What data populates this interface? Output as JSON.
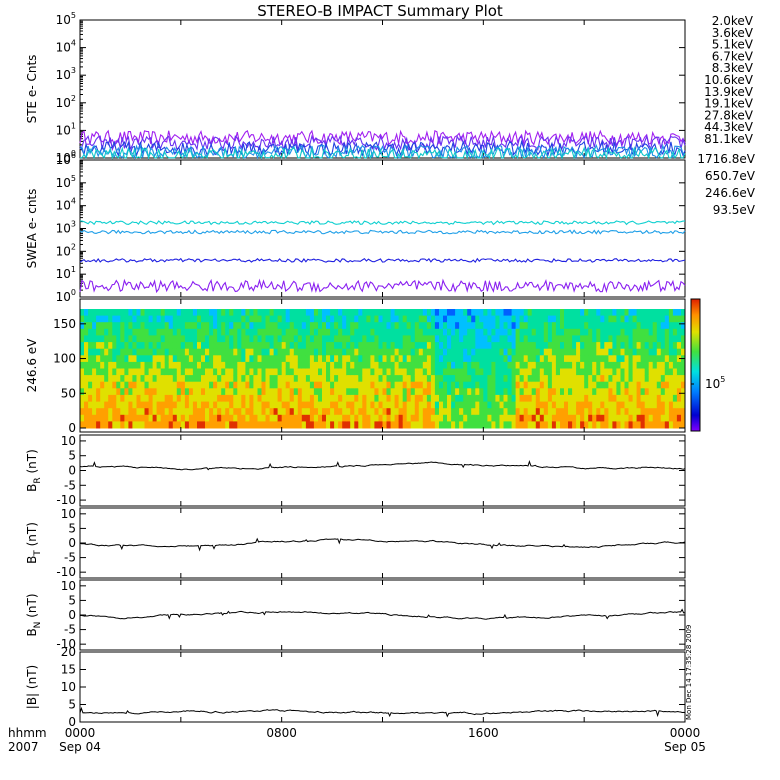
{
  "title": "STEREO-B IMPACT Summary Plot",
  "footer": {
    "hhmm_label": "hhmm",
    "year_label": "2007",
    "timestamp": "Mon Dec 14 17:35:28 2009"
  },
  "x_axis": {
    "ticks": [
      {
        "hour": 0,
        "label": "0000",
        "sublabel": "Sep 04"
      },
      {
        "hour": 8,
        "label": "0800",
        "sublabel": ""
      },
      {
        "hour": 16,
        "label": "1600",
        "sublabel": ""
      },
      {
        "hour": 24,
        "label": "0000",
        "sublabel": "Sep 05"
      }
    ],
    "range_hours": [
      0,
      24
    ]
  },
  "ste_legend": [
    {
      "label": "2.0keV",
      "color": "#a020f0"
    },
    {
      "label": "3.6keV",
      "color": "#6a2ff0"
    },
    {
      "label": "5.1keV",
      "color": "#2040e0"
    },
    {
      "label": "6.7keV",
      "color": "#1f8fe6"
    },
    {
      "label": "8.3keV",
      "color": "#10c8c8"
    },
    {
      "label": "10.6keV",
      "color": "#10c890"
    },
    {
      "label": "13.9keV",
      "color": "#18c818"
    },
    {
      "label": "19.1keV",
      "color": "#c8c800"
    },
    {
      "label": "27.8keV",
      "color": "#f0b400"
    },
    {
      "label": "44.3keV",
      "color": "#e07a00"
    },
    {
      "label": "81.1keV",
      "color": "#e03000"
    }
  ],
  "swea_legend": [
    {
      "label": "1716.8eV",
      "color": "#8a20f0"
    },
    {
      "label": "650.7eV",
      "color": "#2020e0"
    },
    {
      "label": "246.6eV",
      "color": "#1f9fe8"
    },
    {
      "label": "93.5eV",
      "color": "#10d0d0"
    }
  ],
  "chart_data": [
    {
      "type": "line",
      "ylabel": "STE e- Cnts",
      "yscale": "log",
      "ylim": [
        1,
        100000
      ],
      "tick_exponents": [
        0,
        1,
        2,
        3,
        4,
        5
      ],
      "series": [
        {
          "name": "2.0keV",
          "color": "#a020f0",
          "level": 5.5
        },
        {
          "name": "3.6keV",
          "color": "#6a2ff0",
          "level": 3.5
        },
        {
          "name": "5.1keV",
          "color": "#2040e0",
          "level": 2.2
        },
        {
          "name": "6.7keV",
          "color": "#1f8fe6",
          "level": 1.6
        },
        {
          "name": "8.3keV",
          "color": "#10c8c8",
          "level": 1.3
        }
      ]
    },
    {
      "type": "line",
      "ylabel": "SWEA e- cnts",
      "yscale": "log",
      "ylim": [
        1,
        1000000
      ],
      "tick_exponents": [
        0,
        1,
        2,
        3,
        4,
        5,
        6
      ],
      "series": [
        {
          "name": "93.5eV",
          "color": "#10d0d0",
          "level": 1800
        },
        {
          "name": "246.6eV",
          "color": "#1f9fe8",
          "level": 700
        },
        {
          "name": "650.7eV",
          "color": "#2020e0",
          "level": 40
        },
        {
          "name": "1716.8eV",
          "color": "#8a20f0",
          "level": 3
        }
      ]
    },
    {
      "type": "heatmap",
      "ylabel": "246.6 eV",
      "ylim": [
        0,
        180
      ],
      "yticks": [
        0,
        50,
        100,
        150
      ],
      "colorbar_label": "10^5",
      "colorbar_base": "10",
      "colorbar_exp": "5"
    },
    {
      "type": "line",
      "ylabel_main": "B",
      "ylabel_sub": "R",
      "ylabel_unit": " (nT)",
      "ylim": [
        -12,
        12
      ],
      "yticks": [
        -10,
        -5,
        0,
        5,
        10
      ],
      "mean": 1.5,
      "amp": 0.8
    },
    {
      "type": "line",
      "ylabel_main": "B",
      "ylabel_sub": "T",
      "ylabel_unit": " (nT)",
      "ylim": [
        -12,
        12
      ],
      "yticks": [
        -10,
        -5,
        0,
        5,
        10
      ],
      "mean": 0,
      "amp": 1.2
    },
    {
      "type": "line",
      "ylabel_main": "B",
      "ylabel_sub": "N",
      "ylabel_unit": " (nT)",
      "ylim": [
        -12,
        12
      ],
      "yticks": [
        -10,
        -5,
        0,
        5,
        10
      ],
      "mean": 0,
      "amp": 1.0
    },
    {
      "type": "line",
      "ylabel_main": "|B|",
      "ylabel_sub": "",
      "ylabel_unit": " (nT)",
      "ylim": [
        0,
        20
      ],
      "yticks": [
        0,
        5,
        10,
        15,
        20
      ],
      "mean": 2.8,
      "amp": 0.3
    }
  ]
}
